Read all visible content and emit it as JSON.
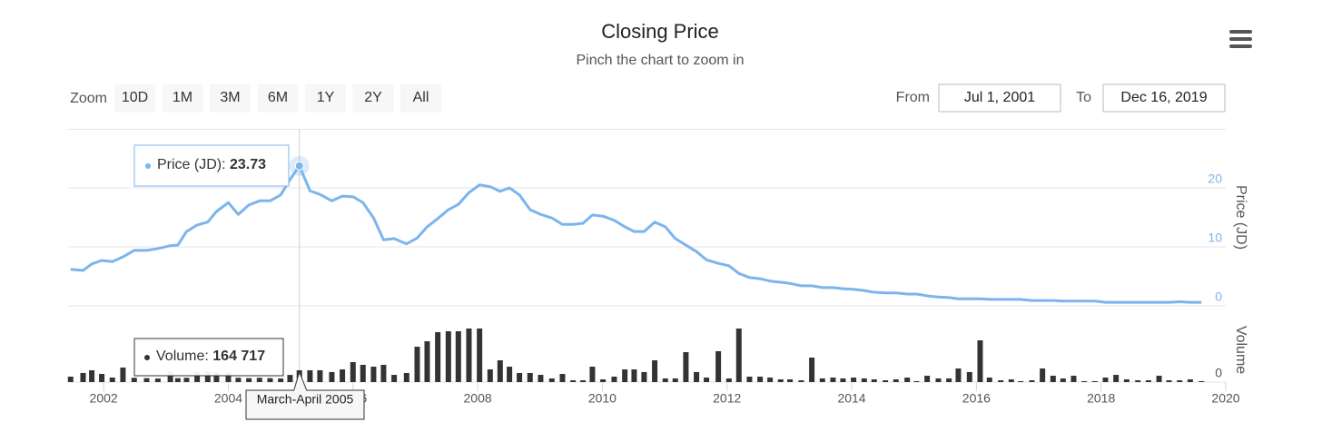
{
  "chart_data": {
    "type": "stock",
    "title": "Closing Price",
    "subtitle": "Pinch the chart to zoom in",
    "zoom": {
      "label": "Zoom",
      "buttons": [
        "10D",
        "1M",
        "3M",
        "6M",
        "1Y",
        "2Y",
        "All"
      ]
    },
    "range": {
      "from_label": "From",
      "from": "Jul 1, 2001",
      "to_label": "To",
      "to": "Dec 16, 2019"
    },
    "x": [
      2001.47,
      2001.67,
      2001.81,
      2001.97,
      2002.14,
      2002.31,
      2002.49,
      2002.69,
      2002.87,
      2003.07,
      2003.19,
      2003.33,
      2003.5,
      2003.67,
      2003.81,
      2004.0,
      2004.16,
      2004.33,
      2004.5,
      2004.67,
      2004.84,
      2004.99,
      2005.14,
      2005.31,
      2005.47,
      2005.66,
      2005.83,
      2006.0,
      2006.16,
      2006.33,
      2006.49,
      2006.66,
      2006.86,
      2007.03,
      2007.19,
      2007.36,
      2007.53,
      2007.69,
      2007.86,
      2008.03,
      2008.2,
      2008.36,
      2008.51,
      2008.67,
      2008.84,
      2009.01,
      2009.19,
      2009.36,
      2009.53,
      2009.69,
      2009.84,
      2010.01,
      2010.19,
      2010.36,
      2010.51,
      2010.67,
      2010.84,
      2011.01,
      2011.17,
      2011.34,
      2011.51,
      2011.67,
      2011.86,
      2012.03,
      2012.19,
      2012.36,
      2012.53,
      2012.69,
      2012.86,
      2013.01,
      2013.19,
      2013.36,
      2013.53,
      2013.7,
      2013.86,
      2014.03,
      2014.2,
      2014.36,
      2014.54,
      2014.71,
      2014.89,
      2015.04,
      2015.21,
      2015.39,
      2015.56,
      2015.71,
      2015.89,
      2016.06,
      2016.21,
      2016.39,
      2016.56,
      2016.71,
      2016.89,
      2017.06,
      2017.23,
      2017.39,
      2017.56,
      2017.73,
      2017.9,
      2018.07,
      2018.24,
      2018.41,
      2018.59,
      2018.76,
      2018.93,
      2019.09,
      2019.26,
      2019.43,
      2019.61
    ],
    "xlim": [
      2001.43,
      2020
    ],
    "xticks": [
      2002,
      2004,
      2006,
      2008,
      2010,
      2012,
      2014,
      2016,
      2018,
      2020
    ],
    "grid": true,
    "series": [
      {
        "name": "Price (JD)",
        "type": "line",
        "color": "#7cb5ec",
        "ylim": [
          0,
          30
        ],
        "yticks": [
          0,
          10,
          20
        ],
        "values": [
          6.2,
          6.0,
          7.1,
          7.7,
          7.5,
          8.3,
          9.4,
          9.4,
          9.7,
          10.2,
          10.3,
          12.6,
          13.7,
          14.2,
          16.0,
          17.5,
          15.5,
          17.1,
          17.8,
          17.8,
          18.8,
          21.4,
          23.73,
          19.5,
          18.9,
          17.8,
          18.6,
          18.5,
          17.5,
          14.9,
          11.2,
          11.4,
          10.5,
          11.5,
          13.4,
          14.8,
          16.3,
          17.2,
          19.2,
          20.5,
          20.2,
          19.4,
          20.0,
          18.8,
          16.3,
          15.5,
          14.9,
          13.8,
          13.8,
          14.0,
          15.4,
          15.2,
          14.5,
          13.4,
          12.6,
          12.6,
          14.2,
          13.4,
          11.4,
          10.3,
          9.2,
          7.8,
          7.2,
          6.8,
          5.5,
          4.8,
          4.6,
          4.2,
          4.0,
          3.8,
          3.4,
          3.4,
          3.1,
          3.1,
          2.9,
          2.8,
          2.6,
          2.3,
          2.2,
          2.2,
          2.0,
          2.0,
          1.7,
          1.5,
          1.4,
          1.2,
          1.2,
          1.2,
          1.1,
          1.1,
          1.1,
          1.1,
          0.9,
          0.9,
          0.9,
          0.8,
          0.8,
          0.8,
          0.8,
          0.6,
          0.6,
          0.6,
          0.6,
          0.6,
          0.6,
          0.6,
          0.7,
          0.6,
          0.6
        ]
      },
      {
        "name": "Volume",
        "type": "bar",
        "color": "#333333",
        "ylim": [
          0,
          900000
        ],
        "yticks": [
          0
        ],
        "values": [
          76000,
          127000,
          165000,
          114000,
          63000,
          203000,
          60000,
          55000,
          50000,
          150000,
          55000,
          60000,
          140000,
          150000,
          140000,
          130000,
          60000,
          55000,
          60000,
          55000,
          50000,
          100000,
          164717,
          165000,
          165000,
          140000,
          177000,
          279000,
          241000,
          215000,
          241000,
          101000,
          127000,
          494000,
          570000,
          697000,
          710000,
          710000,
          748000,
          748000,
          177000,
          304000,
          215000,
          127000,
          127000,
          101000,
          51000,
          114000,
          25000,
          25000,
          215000,
          38000,
          76000,
          177000,
          177000,
          140000,
          304000,
          51000,
          51000,
          418000,
          140000,
          63000,
          431000,
          51000,
          748000,
          76000,
          76000,
          63000,
          38000,
          38000,
          25000,
          342000,
          51000,
          63000,
          51000,
          63000,
          51000,
          38000,
          25000,
          38000,
          63000,
          13000,
          89000,
          51000,
          51000,
          190000,
          140000,
          583000,
          63000,
          25000,
          38000,
          13000,
          25000,
          190000,
          89000,
          51000,
          89000,
          13000,
          13000,
          63000,
          101000,
          38000,
          25000,
          25000,
          89000,
          25000,
          25000,
          38000,
          13000
        ]
      }
    ],
    "tooltip": {
      "price_label": "Price (JD): ",
      "volume_label": "Volume: ",
      "volume_value_label": "164 717",
      "date": "March-April 2005"
    }
  }
}
